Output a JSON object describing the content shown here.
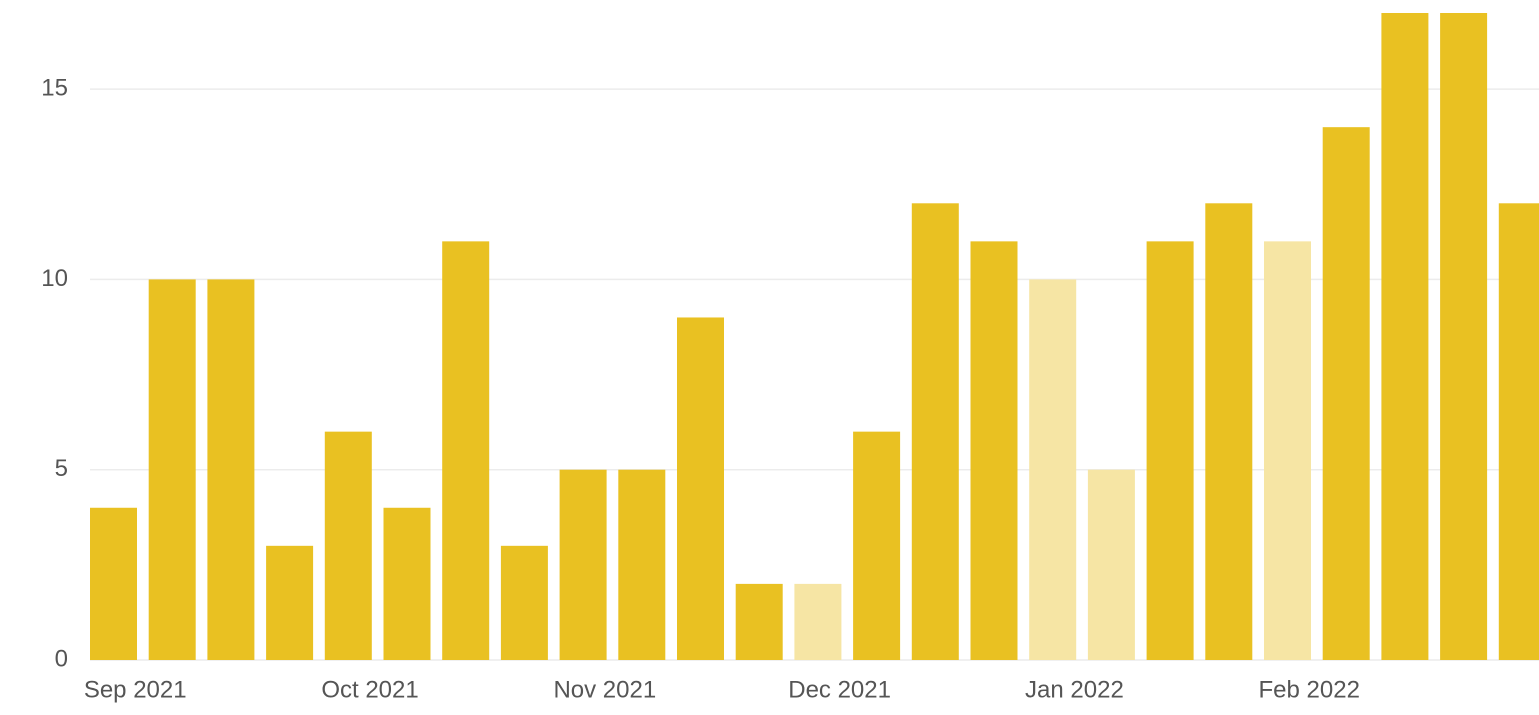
{
  "chart_data": {
    "type": "bar",
    "categories": [
      null,
      null,
      null,
      null,
      null,
      null,
      null,
      null,
      null,
      null,
      null,
      null,
      null,
      null,
      null,
      null,
      null,
      null,
      null,
      null,
      null,
      null,
      null,
      null,
      null
    ],
    "values": [
      4,
      10,
      10,
      3,
      6,
      4,
      11,
      3,
      5,
      5,
      9,
      2,
      2,
      6,
      12,
      11,
      10,
      5,
      11,
      12,
      11,
      14,
      17,
      17,
      12
    ],
    "colors": [
      "#e9c122",
      "#e9c122",
      "#e9c122",
      "#e9c122",
      "#e9c122",
      "#e9c122",
      "#e9c122",
      "#e9c122",
      "#e9c122",
      "#e9c122",
      "#e9c122",
      "#e9c122",
      "#f6e5a4",
      "#e9c122",
      "#e9c122",
      "#e9c122",
      "#f6e5a4",
      "#f6e5a4",
      "#e9c122",
      "#e9c122",
      "#f6e5a4",
      "#e9c122",
      "#e9c122",
      "#e9c122",
      "#e9c122"
    ],
    "ylim": [
      0,
      17
    ],
    "yticks": [
      0,
      5,
      10,
      15
    ],
    "grid": true,
    "xticks": [
      {
        "value": 0.37,
        "label": "Sep 2021"
      },
      {
        "value": 4.37,
        "label": "Oct 2021"
      },
      {
        "value": 8.37,
        "label": "Nov 2021"
      },
      {
        "value": 12.37,
        "label": "Dec 2021"
      },
      {
        "value": 16.37,
        "label": "Jan 2022"
      },
      {
        "value": 20.37,
        "label": "Feb 2022"
      }
    ]
  }
}
